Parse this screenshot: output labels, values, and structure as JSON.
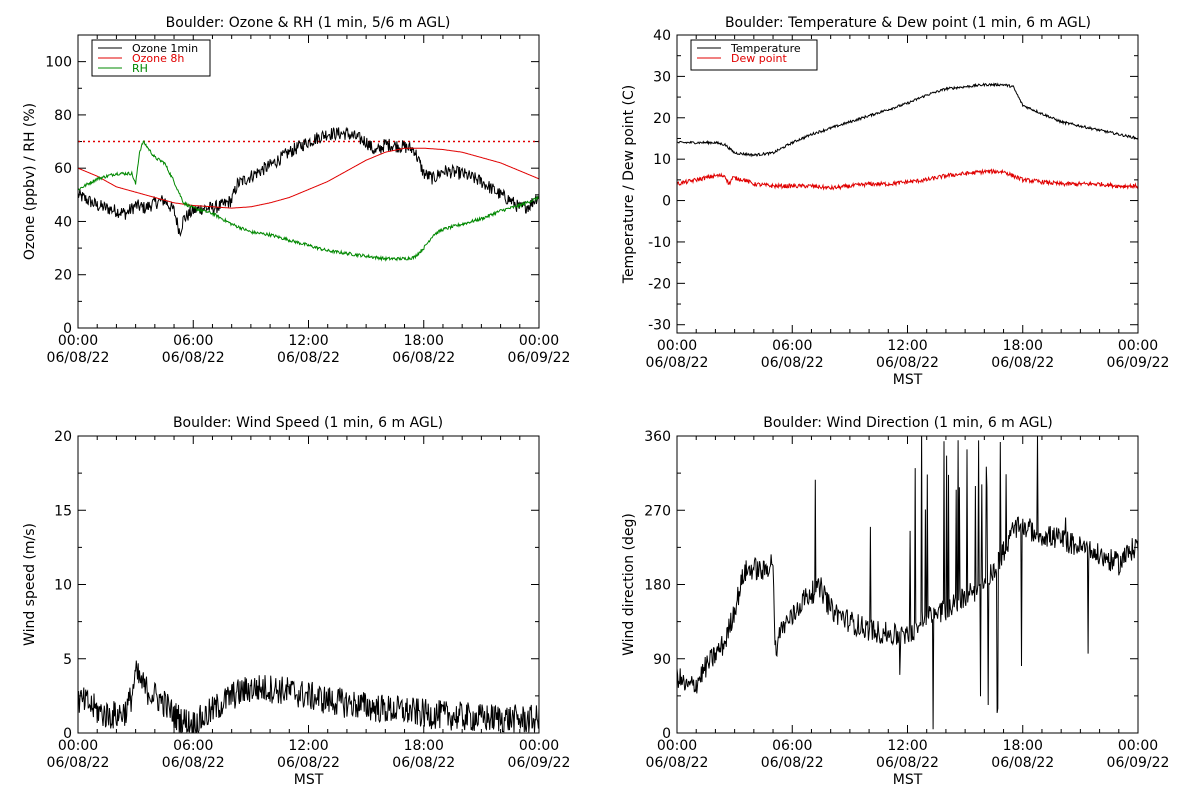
{
  "chart_data": [
    {
      "id": "ozone",
      "type": "line",
      "title": "Boulder: Ozone & RH (1 min, 5/6 m AGL)",
      "ylabel": "Ozone (ppbv) / RH (%)",
      "xlabel": "",
      "xlim": [
        0,
        24
      ],
      "ylim": [
        0,
        110
      ],
      "yticks": [
        0,
        20,
        40,
        60,
        80,
        100
      ],
      "xticks": [
        {
          "x": 0,
          "time": "00:00",
          "date": "06/08/22"
        },
        {
          "x": 6,
          "time": "06:00",
          "date": "06/08/22"
        },
        {
          "x": 12,
          "time": "12:00",
          "date": "06/08/22"
        },
        {
          "x": 18,
          "time": "18:00",
          "date": "06/08/22"
        },
        {
          "x": 24,
          "time": "00:00",
          "date": "06/09/22"
        }
      ],
      "legend": "top-left",
      "reference_line": {
        "y": 70,
        "color": "#e00000",
        "style": "dotted"
      },
      "series": [
        {
          "name": "Ozone 1min",
          "color": "#000000",
          "noise": 2.5,
          "points": [
            [
              0,
              50
            ],
            [
              0.5,
              48
            ],
            [
              1,
              46
            ],
            [
              1.5,
              45
            ],
            [
              2,
              44
            ],
            [
              2.5,
              43
            ],
            [
              3,
              46
            ],
            [
              3.5,
              45
            ],
            [
              4,
              47
            ],
            [
              4.5,
              48
            ],
            [
              5,
              44
            ],
            [
              5.3,
              36
            ],
            [
              5.5,
              41
            ],
            [
              6,
              44
            ],
            [
              6.5,
              45
            ],
            [
              7,
              45
            ],
            [
              7.5,
              46
            ],
            [
              8,
              48
            ],
            [
              8.3,
              54
            ],
            [
              9,
              57
            ],
            [
              10,
              61
            ],
            [
              11,
              66
            ],
            [
              12,
              70
            ],
            [
              13,
              73
            ],
            [
              14,
              73
            ],
            [
              15,
              70
            ],
            [
              15.5,
              66
            ],
            [
              16,
              69
            ],
            [
              17,
              68
            ],
            [
              17.5,
              67
            ],
            [
              18,
              58
            ],
            [
              18.5,
              56
            ],
            [
              19,
              59
            ],
            [
              20,
              58
            ],
            [
              21,
              55
            ],
            [
              22,
              50
            ],
            [
              22.5,
              48
            ],
            [
              23,
              45
            ],
            [
              23.5,
              46
            ],
            [
              24,
              50
            ]
          ]
        },
        {
          "name": "Ozone 8h",
          "color": "#e00000",
          "noise": 0,
          "points": [
            [
              0,
              60
            ],
            [
              1,
              57
            ],
            [
              2,
              53
            ],
            [
              3,
              51
            ],
            [
              4,
              49
            ],
            [
              5,
              47
            ],
            [
              6,
              46
            ],
            [
              7,
              45.5
            ],
            [
              8,
              45
            ],
            [
              9,
              45.5
            ],
            [
              10,
              47
            ],
            [
              11,
              49
            ],
            [
              12,
              52
            ],
            [
              13,
              55
            ],
            [
              14,
              59
            ],
            [
              15,
              63
            ],
            [
              16,
              66
            ],
            [
              17,
              67.5
            ],
            [
              18,
              67.5
            ],
            [
              19,
              67
            ],
            [
              20,
              66
            ],
            [
              21,
              64
            ],
            [
              22,
              62
            ],
            [
              23,
              59
            ],
            [
              24,
              56
            ]
          ]
        },
        {
          "name": "RH",
          "color": "#008800",
          "noise": 0.6,
          "points": [
            [
              0,
              52
            ],
            [
              1,
              56
            ],
            [
              2,
              58
            ],
            [
              2.8,
              58
            ],
            [
              3,
              54
            ],
            [
              3.2,
              66
            ],
            [
              3.4,
              70
            ],
            [
              3.6,
              68
            ],
            [
              4,
              64
            ],
            [
              4.5,
              62
            ],
            [
              5,
              55
            ],
            [
              5.5,
              47
            ],
            [
              6,
              45
            ],
            [
              7,
              43
            ],
            [
              8,
              39
            ],
            [
              9,
              36
            ],
            [
              10,
              35
            ],
            [
              11,
              33
            ],
            [
              12,
              31
            ],
            [
              13,
              29
            ],
            [
              14,
              28
            ],
            [
              15,
              27
            ],
            [
              16,
              26
            ],
            [
              17,
              26
            ],
            [
              17.5,
              26.5
            ],
            [
              18,
              30
            ],
            [
              18.5,
              35
            ],
            [
              19,
              37
            ],
            [
              20,
              39
            ],
            [
              21,
              41
            ],
            [
              22,
              44
            ],
            [
              23,
              46
            ],
            [
              24,
              49
            ]
          ]
        }
      ]
    },
    {
      "id": "temperature",
      "type": "line",
      "title": "Boulder: Temperature & Dew point (1 min, 6 m AGL)",
      "ylabel": "Temperature / Dew point (C)",
      "xlabel": "MST",
      "xlim": [
        0,
        24
      ],
      "ylim": [
        -32,
        40
      ],
      "yticks": [
        -30,
        -20,
        -10,
        0,
        10,
        20,
        30,
        40
      ],
      "xticks": [
        {
          "x": 0,
          "time": "00:00",
          "date": "06/08/22"
        },
        {
          "x": 6,
          "time": "06:00",
          "date": "06/08/22"
        },
        {
          "x": 12,
          "time": "12:00",
          "date": "06/08/22"
        },
        {
          "x": 18,
          "time": "18:00",
          "date": "06/08/22"
        },
        {
          "x": 24,
          "time": "00:00",
          "date": "06/09/22"
        }
      ],
      "legend": "top-left",
      "series": [
        {
          "name": "Temperature",
          "color": "#000000",
          "noise": 0.3,
          "points": [
            [
              0,
              14
            ],
            [
              1,
              14
            ],
            [
              2,
              14
            ],
            [
              2.5,
              13.5
            ],
            [
              3,
              11.5
            ],
            [
              4,
              11
            ],
            [
              5,
              11.5
            ],
            [
              6,
              14
            ],
            [
              7,
              16
            ],
            [
              8,
              17.5
            ],
            [
              9,
              19
            ],
            [
              10,
              20.5
            ],
            [
              11,
              22
            ],
            [
              12,
              23.5
            ],
            [
              13,
              25.5
            ],
            [
              14,
              27
            ],
            [
              15,
              27.5
            ],
            [
              16,
              28
            ],
            [
              17,
              28
            ],
            [
              17.5,
              27.5
            ],
            [
              18,
              23
            ],
            [
              19,
              21
            ],
            [
              20,
              19
            ],
            [
              21,
              18
            ],
            [
              22,
              17
            ],
            [
              23,
              16
            ],
            [
              24,
              15
            ]
          ]
        },
        {
          "name": "Dew point",
          "color": "#e00000",
          "noise": 0.5,
          "points": [
            [
              0,
              4
            ],
            [
              1,
              5
            ],
            [
              2,
              6
            ],
            [
              2.5,
              6
            ],
            [
              2.7,
              4
            ],
            [
              2.9,
              5.5
            ],
            [
              3.5,
              5
            ],
            [
              4,
              4
            ],
            [
              5,
              3.5
            ],
            [
              6,
              3.5
            ],
            [
              7,
              3.5
            ],
            [
              8,
              3
            ],
            [
              9,
              3.5
            ],
            [
              10,
              4
            ],
            [
              11,
              4
            ],
            [
              12,
              4.5
            ],
            [
              13,
              5
            ],
            [
              14,
              6
            ],
            [
              15,
              6.5
            ],
            [
              16,
              7
            ],
            [
              17,
              7
            ],
            [
              17.5,
              6
            ],
            [
              18,
              5
            ],
            [
              19,
              4.5
            ],
            [
              20,
              4
            ],
            [
              21,
              4
            ],
            [
              22,
              4
            ],
            [
              23,
              3.5
            ],
            [
              24,
              3.5
            ]
          ]
        }
      ]
    },
    {
      "id": "windspeed",
      "type": "line",
      "title": "Boulder: Wind Speed (1 min, 6 m AGL)",
      "ylabel": "Wind speed (m/s)",
      "xlabel": "MST",
      "xlim": [
        0,
        24
      ],
      "ylim": [
        0,
        20
      ],
      "yticks": [
        0,
        5,
        10,
        15,
        20
      ],
      "xticks": [
        {
          "x": 0,
          "time": "00:00",
          "date": "06/08/22"
        },
        {
          "x": 6,
          "time": "06:00",
          "date": "06/08/22"
        },
        {
          "x": 12,
          "time": "12:00",
          "date": "06/08/22"
        },
        {
          "x": 18,
          "time": "18:00",
          "date": "06/08/22"
        },
        {
          "x": 24,
          "time": "00:00",
          "date": "06/09/22"
        }
      ],
      "series": [
        {
          "name": "",
          "color": "#000000",
          "noise": 1.0,
          "points": [
            [
              0,
              2.2
            ],
            [
              0.5,
              2
            ],
            [
              1,
              1.5
            ],
            [
              1.5,
              1.2
            ],
            [
              2,
              1.2
            ],
            [
              2.5,
              1.5
            ],
            [
              2.8,
              2.5
            ],
            [
              3,
              4
            ],
            [
              3.5,
              3
            ],
            [
              4,
              2.5
            ],
            [
              4.5,
              2
            ],
            [
              5,
              1.2
            ],
            [
              5.5,
              0.8
            ],
            [
              6,
              0.6
            ],
            [
              6.5,
              1
            ],
            [
              7,
              1.5
            ],
            [
              7.5,
              2
            ],
            [
              8,
              2.5
            ],
            [
              9,
              3
            ],
            [
              10,
              3
            ],
            [
              11,
              2.8
            ],
            [
              12,
              2.5
            ],
            [
              13,
              2.2
            ],
            [
              14,
              2
            ],
            [
              15,
              1.8
            ],
            [
              16,
              1.6
            ],
            [
              17,
              1.5
            ],
            [
              18,
              1.3
            ],
            [
              19,
              1.2
            ],
            [
              20,
              1.1
            ],
            [
              21,
              1
            ],
            [
              22,
              1
            ],
            [
              23,
              0.9
            ],
            [
              24,
              0.9
            ]
          ]
        }
      ]
    },
    {
      "id": "winddir",
      "type": "line",
      "title": "Boulder: Wind Direction (1 min, 6 m AGL)",
      "ylabel": "Wind direction (deg)",
      "xlabel": "MST",
      "xlim": [
        0,
        24
      ],
      "ylim": [
        0,
        360
      ],
      "yticks": [
        0,
        90,
        180,
        270,
        360
      ],
      "xticks": [
        {
          "x": 0,
          "time": "00:00",
          "date": "06/08/22"
        },
        {
          "x": 6,
          "time": "06:00",
          "date": "06/08/22"
        },
        {
          "x": 12,
          "time": "12:00",
          "date": "06/08/22"
        },
        {
          "x": 18,
          "time": "18:00",
          "date": "06/08/22"
        },
        {
          "x": 24,
          "time": "00:00",
          "date": "06/09/22"
        }
      ],
      "series": [
        {
          "name": "",
          "color": "#000000",
          "noise": 14,
          "points": [
            [
              0,
              70
            ],
            [
              0.5,
              55
            ],
            [
              1,
              60
            ],
            [
              1.5,
              80
            ],
            [
              2,
              95
            ],
            [
              2.5,
              110
            ],
            [
              3,
              150
            ],
            [
              3.5,
              195
            ],
            [
              4,
              200
            ],
            [
              4.5,
              195
            ],
            [
              5,
              210
            ],
            [
              5.1,
              100
            ],
            [
              5.5,
              130
            ],
            [
              6,
              140
            ],
            [
              6.5,
              160
            ],
            [
              7,
              170
            ],
            [
              7.5,
              175
            ],
            [
              8,
              150
            ],
            [
              9,
              135
            ],
            [
              10,
              125
            ],
            [
              11,
              120
            ],
            [
              12,
              115
            ],
            [
              12.5,
              130
            ],
            [
              13,
              140
            ],
            [
              14,
              150
            ],
            [
              15,
              165
            ],
            [
              16,
              180
            ],
            [
              17,
              220
            ],
            [
              17.5,
              245
            ],
            [
              18,
              250
            ],
            [
              19,
              240
            ],
            [
              20,
              235
            ],
            [
              21,
              225
            ],
            [
              22,
              215
            ],
            [
              23,
              205
            ],
            [
              24,
              230
            ]
          ]
        }
      ]
    }
  ]
}
